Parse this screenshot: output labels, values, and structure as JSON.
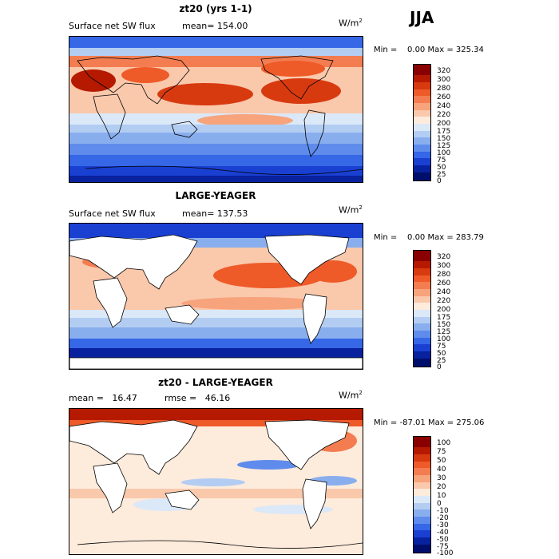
{
  "season": "JJA",
  "panels": [
    {
      "title": "zt20 (yrs 1-1)",
      "variable": "Surface net SW flux",
      "stat": "mean= 154.00",
      "units_main": "W/m",
      "units_sup": "2",
      "min_label": "Min =",
      "min_value": "0.00",
      "max_label": "Max =",
      "max_value": "325.34",
      "colorbar": {
        "labels": [
          "320",
          "300",
          "280",
          "260",
          "240",
          "220",
          "200",
          "175",
          "150",
          "125",
          "100",
          "75",
          "50",
          "25",
          "0"
        ],
        "colors": [
          "#8a0000",
          "#b51a00",
          "#d83a10",
          "#ee5a28",
          "#f37d50",
          "#f7a37c",
          "#fac8ab",
          "#fdebdc",
          "#dbe8f8",
          "#b3cdf2",
          "#89aeee",
          "#5f8cec",
          "#3567e6",
          "#1a40d2",
          "#08219e",
          "#000e6b"
        ]
      }
    },
    {
      "title": "LARGE-YEAGER",
      "variable": "Surface net SW flux",
      "stat": "mean= 137.53",
      "units_main": "W/m",
      "units_sup": "2",
      "min_label": "Min =",
      "min_value": "0.00",
      "max_label": "Max =",
      "max_value": "283.79",
      "colorbar": {
        "labels": [
          "320",
          "300",
          "280",
          "260",
          "240",
          "220",
          "200",
          "175",
          "150",
          "125",
          "100",
          "75",
          "50",
          "25",
          "0"
        ],
        "colors": [
          "#8a0000",
          "#b51a00",
          "#d83a10",
          "#ee5a28",
          "#f37d50",
          "#f7a37c",
          "#fac8ab",
          "#fdebdc",
          "#dbe8f8",
          "#b3cdf2",
          "#89aeee",
          "#5f8cec",
          "#3567e6",
          "#1a40d2",
          "#08219e",
          "#000e6b"
        ]
      }
    },
    {
      "title": "zt20 - LARGE-YEAGER",
      "stat": "mean =   16.47",
      "stat2": "rmse =   46.16",
      "units_main": "W/m",
      "units_sup": "2",
      "min_label": "Min =",
      "min_value": "-87.01",
      "max_label": "Max =",
      "max_value": "275.06",
      "colorbar": {
        "labels": [
          "100",
          "75",
          "50",
          "40",
          "30",
          "20",
          "10",
          "0",
          "-10",
          "-20",
          "-30",
          "-40",
          "-50",
          "-75",
          "-100"
        ],
        "colors": [
          "#8a0000",
          "#b51a00",
          "#d83a10",
          "#ee5a28",
          "#f37d50",
          "#f7a37c",
          "#fac8ab",
          "#fdebdc",
          "#dbe8f8",
          "#b3cdf2",
          "#89aeee",
          "#5f8cec",
          "#3567e6",
          "#1a40d2",
          "#08219e",
          "#000e6b"
        ]
      }
    }
  ]
}
